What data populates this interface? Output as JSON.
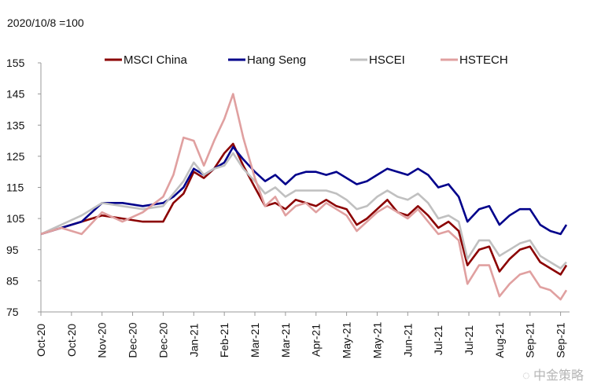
{
  "chart_data": {
    "type": "line",
    "title": "",
    "note": "2020/10/8 =100",
    "xlabel": "",
    "ylabel": "",
    "ylim": [
      75,
      155
    ],
    "yticks": [
      75,
      85,
      95,
      105,
      115,
      125,
      135,
      145,
      155
    ],
    "xlim": [
      "2020-10-08",
      "2021-10-04"
    ],
    "xticks": [
      {
        "date": "2020-10-08",
        "label": "Oct-20"
      },
      {
        "date": "2020-10-29",
        "label": "Oct-20"
      },
      {
        "date": "2020-11-19",
        "label": "Nov-20"
      },
      {
        "date": "2020-12-10",
        "label": "Dec-20"
      },
      {
        "date": "2020-12-31",
        "label": "Dec-20"
      },
      {
        "date": "2021-01-21",
        "label": "Jan-21"
      },
      {
        "date": "2021-02-11",
        "label": "Feb-21"
      },
      {
        "date": "2021-03-04",
        "label": "Mar-21"
      },
      {
        "date": "2021-03-25",
        "label": "Mar-21"
      },
      {
        "date": "2021-04-15",
        "label": "Apr-21"
      },
      {
        "date": "2021-05-06",
        "label": "May-21"
      },
      {
        "date": "2021-05-27",
        "label": "May-21"
      },
      {
        "date": "2021-06-17",
        "label": "Jun-21"
      },
      {
        "date": "2021-07-08",
        "label": "Jul-21"
      },
      {
        "date": "2021-07-29",
        "label": "Jul-21"
      },
      {
        "date": "2021-08-19",
        "label": "Aug-21"
      },
      {
        "date": "2021-09-09",
        "label": "Sep-21"
      },
      {
        "date": "2021-09-30",
        "label": "Sep-21"
      }
    ],
    "grid": false,
    "legend_position": "top",
    "x": [
      "2020-10-08",
      "2020-10-22",
      "2020-11-05",
      "2020-11-19",
      "2020-12-03",
      "2020-12-17",
      "2020-12-31",
      "2021-01-07",
      "2021-01-14",
      "2021-01-21",
      "2021-01-28",
      "2021-02-04",
      "2021-02-11",
      "2021-02-17",
      "2021-02-24",
      "2021-03-04",
      "2021-03-11",
      "2021-03-18",
      "2021-03-25",
      "2021-04-01",
      "2021-04-08",
      "2021-04-15",
      "2021-04-22",
      "2021-04-29",
      "2021-05-06",
      "2021-05-13",
      "2021-05-20",
      "2021-05-27",
      "2021-06-03",
      "2021-06-10",
      "2021-06-17",
      "2021-06-24",
      "2021-07-01",
      "2021-07-08",
      "2021-07-15",
      "2021-07-22",
      "2021-07-28",
      "2021-08-05",
      "2021-08-12",
      "2021-08-19",
      "2021-08-26",
      "2021-09-02",
      "2021-09-09",
      "2021-09-16",
      "2021-09-23",
      "2021-09-30",
      "2021-10-04"
    ],
    "series": [
      {
        "name": "MSCI China",
        "color": "#8b0000",
        "values": [
          100,
          102,
          104,
          106,
          105,
          104,
          104,
          110,
          113,
          120,
          118,
          121,
          126,
          129,
          122,
          115,
          109,
          110,
          108,
          111,
          110,
          109,
          111,
          109,
          108,
          103,
          105,
          108,
          111,
          107,
          106,
          109,
          106,
          102,
          104,
          101,
          90,
          95,
          96,
          88,
          92,
          95,
          96,
          91,
          89,
          87,
          90
        ]
      },
      {
        "name": "Hang Seng",
        "color": "#00008b",
        "values": [
          100,
          102,
          104,
          110,
          110,
          109,
          110,
          112,
          115,
          121,
          119,
          121,
          123,
          128,
          124,
          120,
          117,
          119,
          116,
          119,
          120,
          120,
          119,
          120,
          118,
          116,
          117,
          119,
          121,
          120,
          119,
          121,
          119,
          115,
          116,
          112,
          104,
          108,
          109,
          103,
          106,
          108,
          108,
          103,
          101,
          100,
          103
        ]
      },
      {
        "name": "HSCEI",
        "color": "#c0c0c0",
        "values": [
          100,
          103,
          106,
          110,
          109,
          108,
          109,
          113,
          117,
          123,
          119,
          121,
          122,
          126,
          121,
          117,
          113,
          115,
          112,
          114,
          114,
          114,
          114,
          113,
          111,
          108,
          109,
          112,
          114,
          112,
          111,
          113,
          110,
          105,
          106,
          104,
          92,
          98,
          98,
          93,
          95,
          97,
          98,
          93,
          91,
          89,
          91
        ]
      },
      {
        "name": "HSTECH",
        "color": "#e0a0a0",
        "values": [
          100,
          102,
          100,
          107,
          104,
          107,
          112,
          119,
          131,
          130,
          122,
          130,
          137,
          145,
          131,
          118,
          109,
          112,
          106,
          109,
          110,
          107,
          110,
          108,
          106,
          101,
          104,
          107,
          109,
          107,
          105,
          108,
          104,
          100,
          101,
          98,
          84,
          90,
          90,
          80,
          84,
          87,
          88,
          83,
          82,
          79,
          82
        ]
      }
    ]
  },
  "watermark": "中金策略"
}
